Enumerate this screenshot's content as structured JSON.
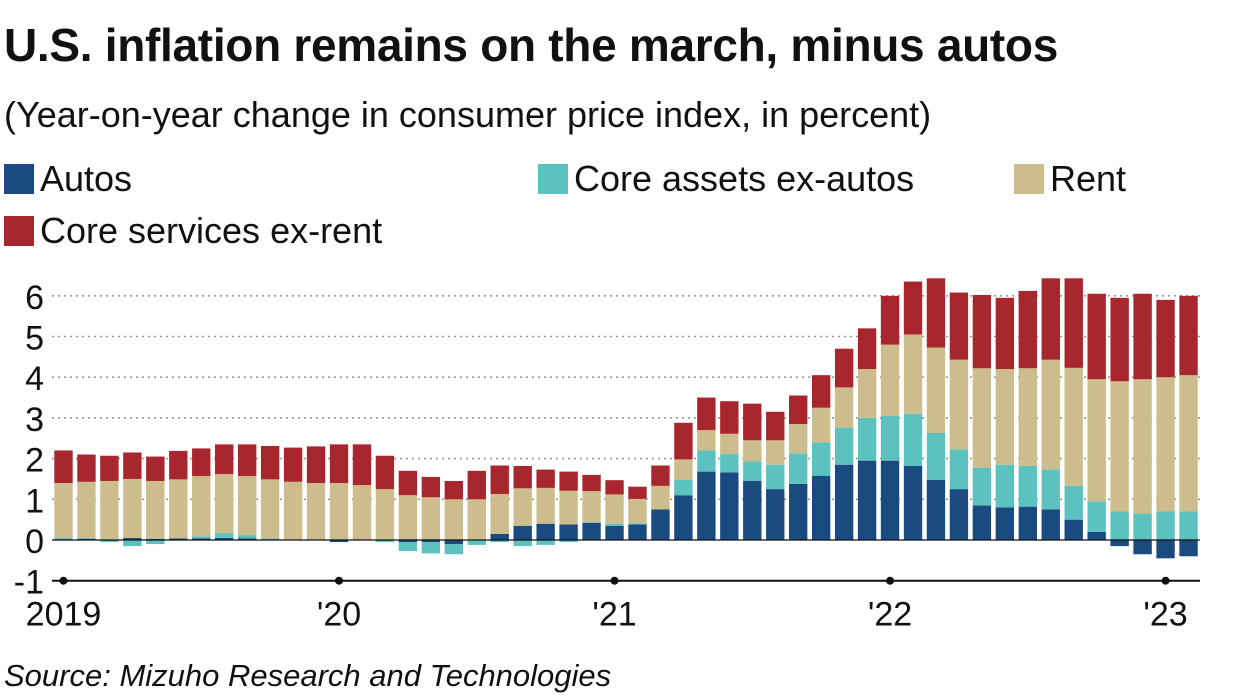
{
  "title": "U.S. inflation remains on the march, minus autos",
  "subtitle": "(Year-on-year change in consumer price index, in percent)",
  "source": "Source: Mizuho Research and Technologies",
  "legend": [
    {
      "label": "Autos",
      "color": "#1b4a80"
    },
    {
      "label": "Core assets ex-autos",
      "color": "#5cc2c0"
    },
    {
      "label": "Rent",
      "color": "#cdbd8c"
    },
    {
      "label": "Core services ex-rent",
      "color": "#a8262e"
    }
  ],
  "chart_data": {
    "type": "bar",
    "stacked": true,
    "ylim": [
      -1,
      6.5
    ],
    "yticks": [
      -1,
      0,
      1,
      2,
      3,
      4,
      5,
      6
    ],
    "grid": true,
    "legend_position": "top",
    "x_labels": [
      "2019",
      "'20",
      "'21",
      "'22",
      "'23"
    ],
    "x_label_indices": [
      0,
      12,
      24,
      36,
      48
    ],
    "categories": [
      "Jan 2019",
      "Feb 2019",
      "Mar 2019",
      "Apr 2019",
      "May 2019",
      "Jun 2019",
      "Jul 2019",
      "Aug 2019",
      "Sep 2019",
      "Oct 2019",
      "Nov 2019",
      "Dec 2019",
      "Jan 2020",
      "Feb 2020",
      "Mar 2020",
      "Apr 2020",
      "May 2020",
      "Jun 2020",
      "Jul 2020",
      "Aug 2020",
      "Sep 2020",
      "Oct 2020",
      "Nov 2020",
      "Dec 2020",
      "Jan 2021",
      "Feb 2021",
      "Mar 2021",
      "Apr 2021",
      "May 2021",
      "Jun 2021",
      "Jul 2021",
      "Aug 2021",
      "Sep 2021",
      "Oct 2021",
      "Nov 2021",
      "Dec 2021",
      "Jan 2022",
      "Feb 2022",
      "Mar 2022",
      "Apr 2022",
      "May 2022",
      "Jun 2022",
      "Jul 2022",
      "Aug 2022",
      "Sep 2022",
      "Oct 2022",
      "Nov 2022",
      "Dec 2022",
      "Jan 2023",
      "Feb 2023"
    ],
    "series": [
      {
        "name": "Autos",
        "color": "#1b4a80",
        "values": [
          0.02,
          0.03,
          0.0,
          0.05,
          0.03,
          0.04,
          0.04,
          0.05,
          0.04,
          0.02,
          0.01,
          0.0,
          -0.05,
          0.0,
          0.0,
          -0.05,
          -0.05,
          -0.1,
          0.0,
          0.15,
          0.35,
          0.4,
          0.38,
          0.42,
          0.35,
          0.38,
          0.75,
          1.1,
          1.68,
          1.66,
          1.45,
          1.25,
          1.38,
          1.58,
          1.85,
          1.95,
          1.95,
          1.82,
          1.48,
          1.25,
          0.85,
          0.8,
          0.82,
          0.75,
          0.5,
          0.2,
          -0.15,
          -0.35,
          -0.45,
          -0.4
        ]
      },
      {
        "name": "Core assets ex-autos",
        "color": "#5cc2c0",
        "values": [
          0.03,
          0.02,
          -0.05,
          -0.15,
          -0.1,
          0.0,
          0.05,
          0.12,
          0.08,
          0.02,
          0.0,
          0.0,
          0.0,
          0.0,
          -0.05,
          -0.22,
          -0.28,
          -0.25,
          -0.12,
          -0.05,
          -0.15,
          -0.12,
          -0.05,
          0.02,
          0.05,
          0.03,
          0.0,
          0.38,
          0.52,
          0.45,
          0.48,
          0.6,
          0.75,
          0.82,
          0.9,
          1.05,
          1.1,
          1.28,
          1.15,
          0.98,
          0.92,
          1.05,
          1.0,
          0.98,
          0.83,
          0.75,
          0.7,
          0.65,
          0.7,
          0.7
        ]
      },
      {
        "name": "Rent",
        "color": "#cdbd8c",
        "values": [
          1.35,
          1.38,
          1.45,
          1.45,
          1.42,
          1.45,
          1.48,
          1.45,
          1.45,
          1.45,
          1.42,
          1.4,
          1.4,
          1.35,
          1.25,
          1.1,
          1.05,
          1.0,
          1.0,
          0.98,
          0.92,
          0.88,
          0.83,
          0.76,
          0.72,
          0.6,
          0.58,
          0.5,
          0.5,
          0.5,
          0.52,
          0.6,
          0.72,
          0.85,
          1.0,
          1.2,
          1.75,
          1.95,
          2.1,
          2.2,
          2.45,
          2.35,
          2.4,
          2.7,
          2.9,
          3.0,
          3.2,
          3.3,
          3.3,
          3.35
        ]
      },
      {
        "name": "Core services ex-rent",
        "color": "#a8262e",
        "values": [
          0.8,
          0.67,
          0.62,
          0.65,
          0.6,
          0.7,
          0.68,
          0.73,
          0.78,
          0.82,
          0.84,
          0.9,
          0.95,
          1.0,
          0.82,
          0.6,
          0.5,
          0.45,
          0.7,
          0.7,
          0.55,
          0.45,
          0.47,
          0.4,
          0.35,
          0.3,
          0.5,
          0.9,
          0.8,
          0.8,
          0.9,
          0.7,
          0.7,
          0.8,
          0.95,
          1.0,
          1.2,
          1.3,
          1.7,
          1.65,
          1.8,
          1.75,
          1.9,
          2.0,
          2.2,
          2.1,
          2.05,
          2.1,
          1.9,
          1.95
        ]
      }
    ]
  }
}
